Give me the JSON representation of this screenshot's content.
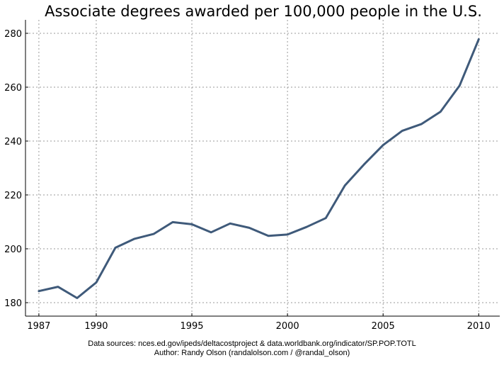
{
  "chart_data": {
    "type": "line",
    "title": "Associate degrees awarded per 100,000 people in the U.S.",
    "xlabel": "",
    "ylabel": "",
    "xlim": [
      1986.3,
      2011.1
    ],
    "ylim": [
      175,
      285
    ],
    "x_ticks": [
      1987,
      1990,
      1995,
      2000,
      2005,
      2010
    ],
    "y_ticks": [
      180,
      200,
      220,
      240,
      260,
      280
    ],
    "grid": true,
    "line_color": "#3f5a7a",
    "series": [
      {
        "x": [
          1987,
          1988,
          1989,
          1990,
          1991,
          1992,
          1993,
          1994,
          1995,
          1996,
          1997,
          1998,
          1999,
          2000,
          2001,
          2002,
          2003,
          2004,
          2005,
          2006,
          2007,
          2008,
          2009,
          2010
        ],
        "values": [
          184.3,
          185.9,
          181.7,
          187.5,
          200.4,
          203.7,
          205.5,
          209.9,
          209.1,
          206.1,
          209.4,
          207.8,
          204.8,
          205.3,
          208.1,
          211.4,
          223.5,
          231.3,
          238.5,
          243.8,
          246.3,
          250.9,
          260.6,
          277.8
        ]
      }
    ]
  },
  "footer": {
    "line1": "Data sources: nces.ed.gov/ipeds/deltacostproject & data.worldbank.org/indicator/SP.POP.TOTL",
    "line2": "Author: Randy Olson (randalolson.com / @randal_olson)"
  }
}
